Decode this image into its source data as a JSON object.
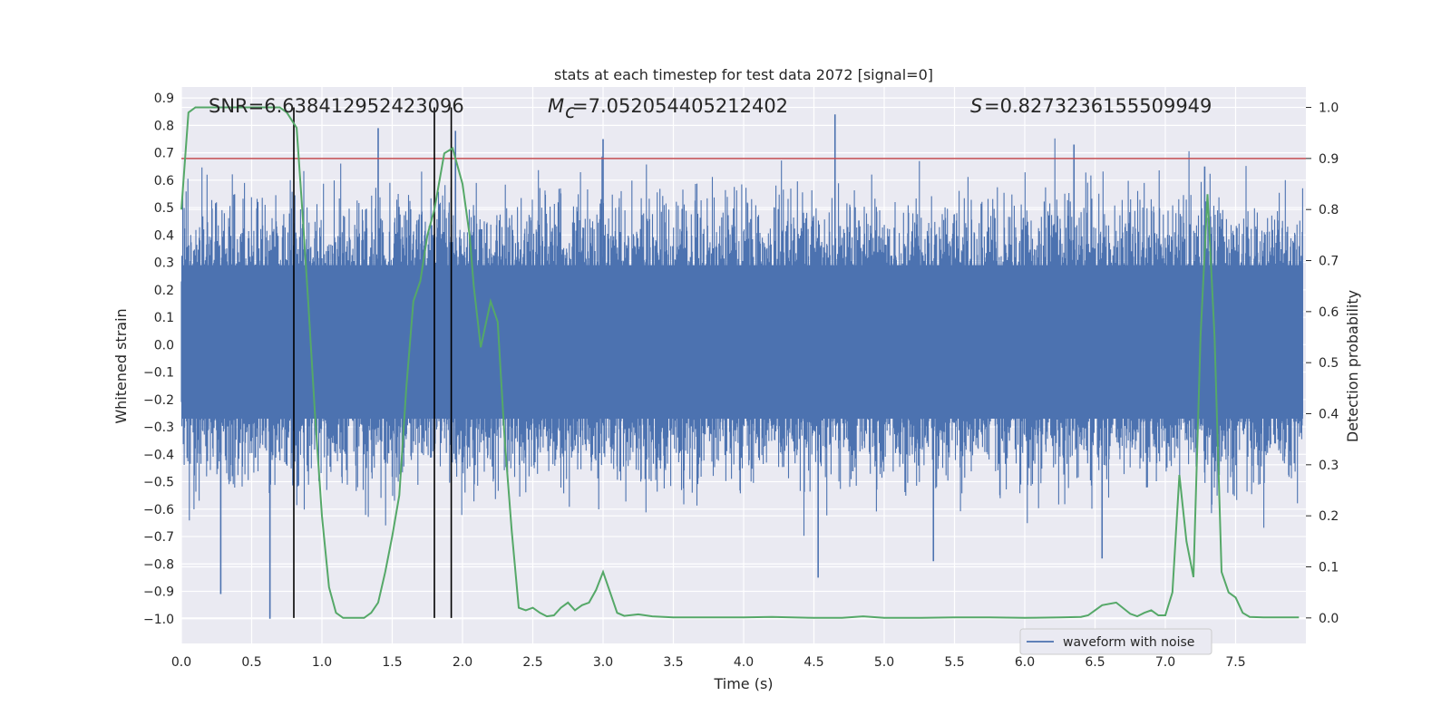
{
  "chart_data": {
    "type": "line",
    "title": "stats at each timestep for test data 2072 [signal=0]",
    "xlabel": "Time (s)",
    "ylabel": "Whitened strain",
    "y2label": "Detection probability",
    "xlim": [
      0,
      8.0
    ],
    "ylim": [
      -1.09,
      0.94
    ],
    "y2lim": [
      -0.05,
      1.04
    ],
    "xticks": [
      "0.0",
      "0.5",
      "1.0",
      "1.5",
      "2.0",
      "2.5",
      "3.0",
      "3.5",
      "4.0",
      "4.5",
      "5.0",
      "5.5",
      "6.0",
      "6.5",
      "7.0",
      "7.5"
    ],
    "yticks": [
      "0.9",
      "0.8",
      "0.7",
      "0.6",
      "0.5",
      "0.4",
      "0.3",
      "0.2",
      "0.1",
      "0.0",
      "−0.1",
      "−0.2",
      "−0.3",
      "−0.4",
      "−0.5",
      "−0.6",
      "−0.7",
      "−0.8",
      "−0.9",
      "−1.0"
    ],
    "y2ticks": [
      "1.0",
      "0.9",
      "0.8",
      "0.7",
      "0.6",
      "0.5",
      "0.4",
      "0.3",
      "0.2",
      "0.1",
      "0.0"
    ],
    "grid": true,
    "legend_position": "lower-right",
    "annotations": {
      "snr": "SNR=6.638412952423096",
      "mc": "=7.052054405212402",
      "s": "=0.8273236155509949"
    },
    "threshold": {
      "value": 0.9,
      "axis": "y2",
      "color": "#c44e52"
    },
    "vlines": [
      0.8,
      1.8,
      1.92
    ],
    "series": [
      {
        "name": "waveform with noise",
        "axis": "y1",
        "color": "#4c72b0",
        "kind": "noise_band",
        "dense_band": [
          -0.27,
          0.29
        ],
        "peak_points": [
          {
            "x": 0.28,
            "y": -0.91
          },
          {
            "x": 0.63,
            "y": -1.0
          },
          {
            "x": 1.4,
            "y": 0.79
          },
          {
            "x": 1.95,
            "y": 0.78
          },
          {
            "x": 3.0,
            "y": 0.75
          },
          {
            "x": 4.53,
            "y": -0.85
          },
          {
            "x": 4.65,
            "y": 0.84
          },
          {
            "x": 5.35,
            "y": -0.79
          },
          {
            "x": 6.35,
            "y": 0.73
          },
          {
            "x": 6.55,
            "y": -0.78
          },
          {
            "x": 7.28,
            "y": 0.65
          }
        ]
      },
      {
        "name": "",
        "axis": "y2",
        "color": "#55a868",
        "x": [
          0.0,
          0.05,
          0.1,
          0.2,
          0.3,
          0.4,
          0.5,
          0.6,
          0.7,
          0.75,
          0.82,
          0.86,
          0.9,
          0.95,
          1.0,
          1.05,
          1.1,
          1.15,
          1.2,
          1.3,
          1.35,
          1.4,
          1.45,
          1.5,
          1.55,
          1.6,
          1.65,
          1.7,
          1.75,
          1.8,
          1.87,
          1.93,
          2.0,
          2.05,
          2.08,
          2.13,
          2.2,
          2.25,
          2.3,
          2.35,
          2.4,
          2.45,
          2.5,
          2.55,
          2.6,
          2.65,
          2.7,
          2.75,
          2.8,
          2.85,
          2.9,
          2.95,
          3.0,
          3.05,
          3.1,
          3.15,
          3.25,
          3.35,
          3.5,
          3.75,
          4.0,
          4.2,
          4.5,
          4.7,
          4.85,
          5.0,
          5.25,
          5.5,
          5.75,
          6.0,
          6.25,
          6.4,
          6.45,
          6.5,
          6.55,
          6.65,
          6.75,
          6.8,
          6.85,
          6.9,
          6.95,
          7.0,
          7.05,
          7.1,
          7.15,
          7.2,
          7.25,
          7.3,
          7.35,
          7.4,
          7.45,
          7.5,
          7.55,
          7.6,
          7.7,
          7.8,
          7.95
        ],
        "values": [
          0.8,
          0.99,
          1.0,
          1.0,
          1.0,
          1.0,
          1.0,
          1.0,
          1.0,
          0.99,
          0.96,
          0.8,
          0.63,
          0.4,
          0.2,
          0.06,
          0.01,
          0.0,
          0.0,
          0.0,
          0.01,
          0.03,
          0.09,
          0.16,
          0.24,
          0.45,
          0.62,
          0.66,
          0.75,
          0.8,
          0.91,
          0.92,
          0.85,
          0.75,
          0.65,
          0.53,
          0.62,
          0.58,
          0.35,
          0.17,
          0.02,
          0.015,
          0.02,
          0.01,
          0.003,
          0.005,
          0.02,
          0.03,
          0.015,
          0.025,
          0.03,
          0.055,
          0.09,
          0.05,
          0.01,
          0.004,
          0.007,
          0.003,
          0.001,
          0.001,
          0.001,
          0.002,
          0.0,
          0.0,
          0.003,
          0.0,
          0.0,
          0.001,
          0.001,
          0.0,
          0.001,
          0.002,
          0.005,
          0.015,
          0.025,
          0.03,
          0.008,
          0.003,
          0.01,
          0.015,
          0.005,
          0.005,
          0.05,
          0.28,
          0.15,
          0.08,
          0.55,
          0.83,
          0.55,
          0.09,
          0.05,
          0.04,
          0.01,
          0.002,
          0.001,
          0.001,
          0.001
        ]
      }
    ]
  }
}
